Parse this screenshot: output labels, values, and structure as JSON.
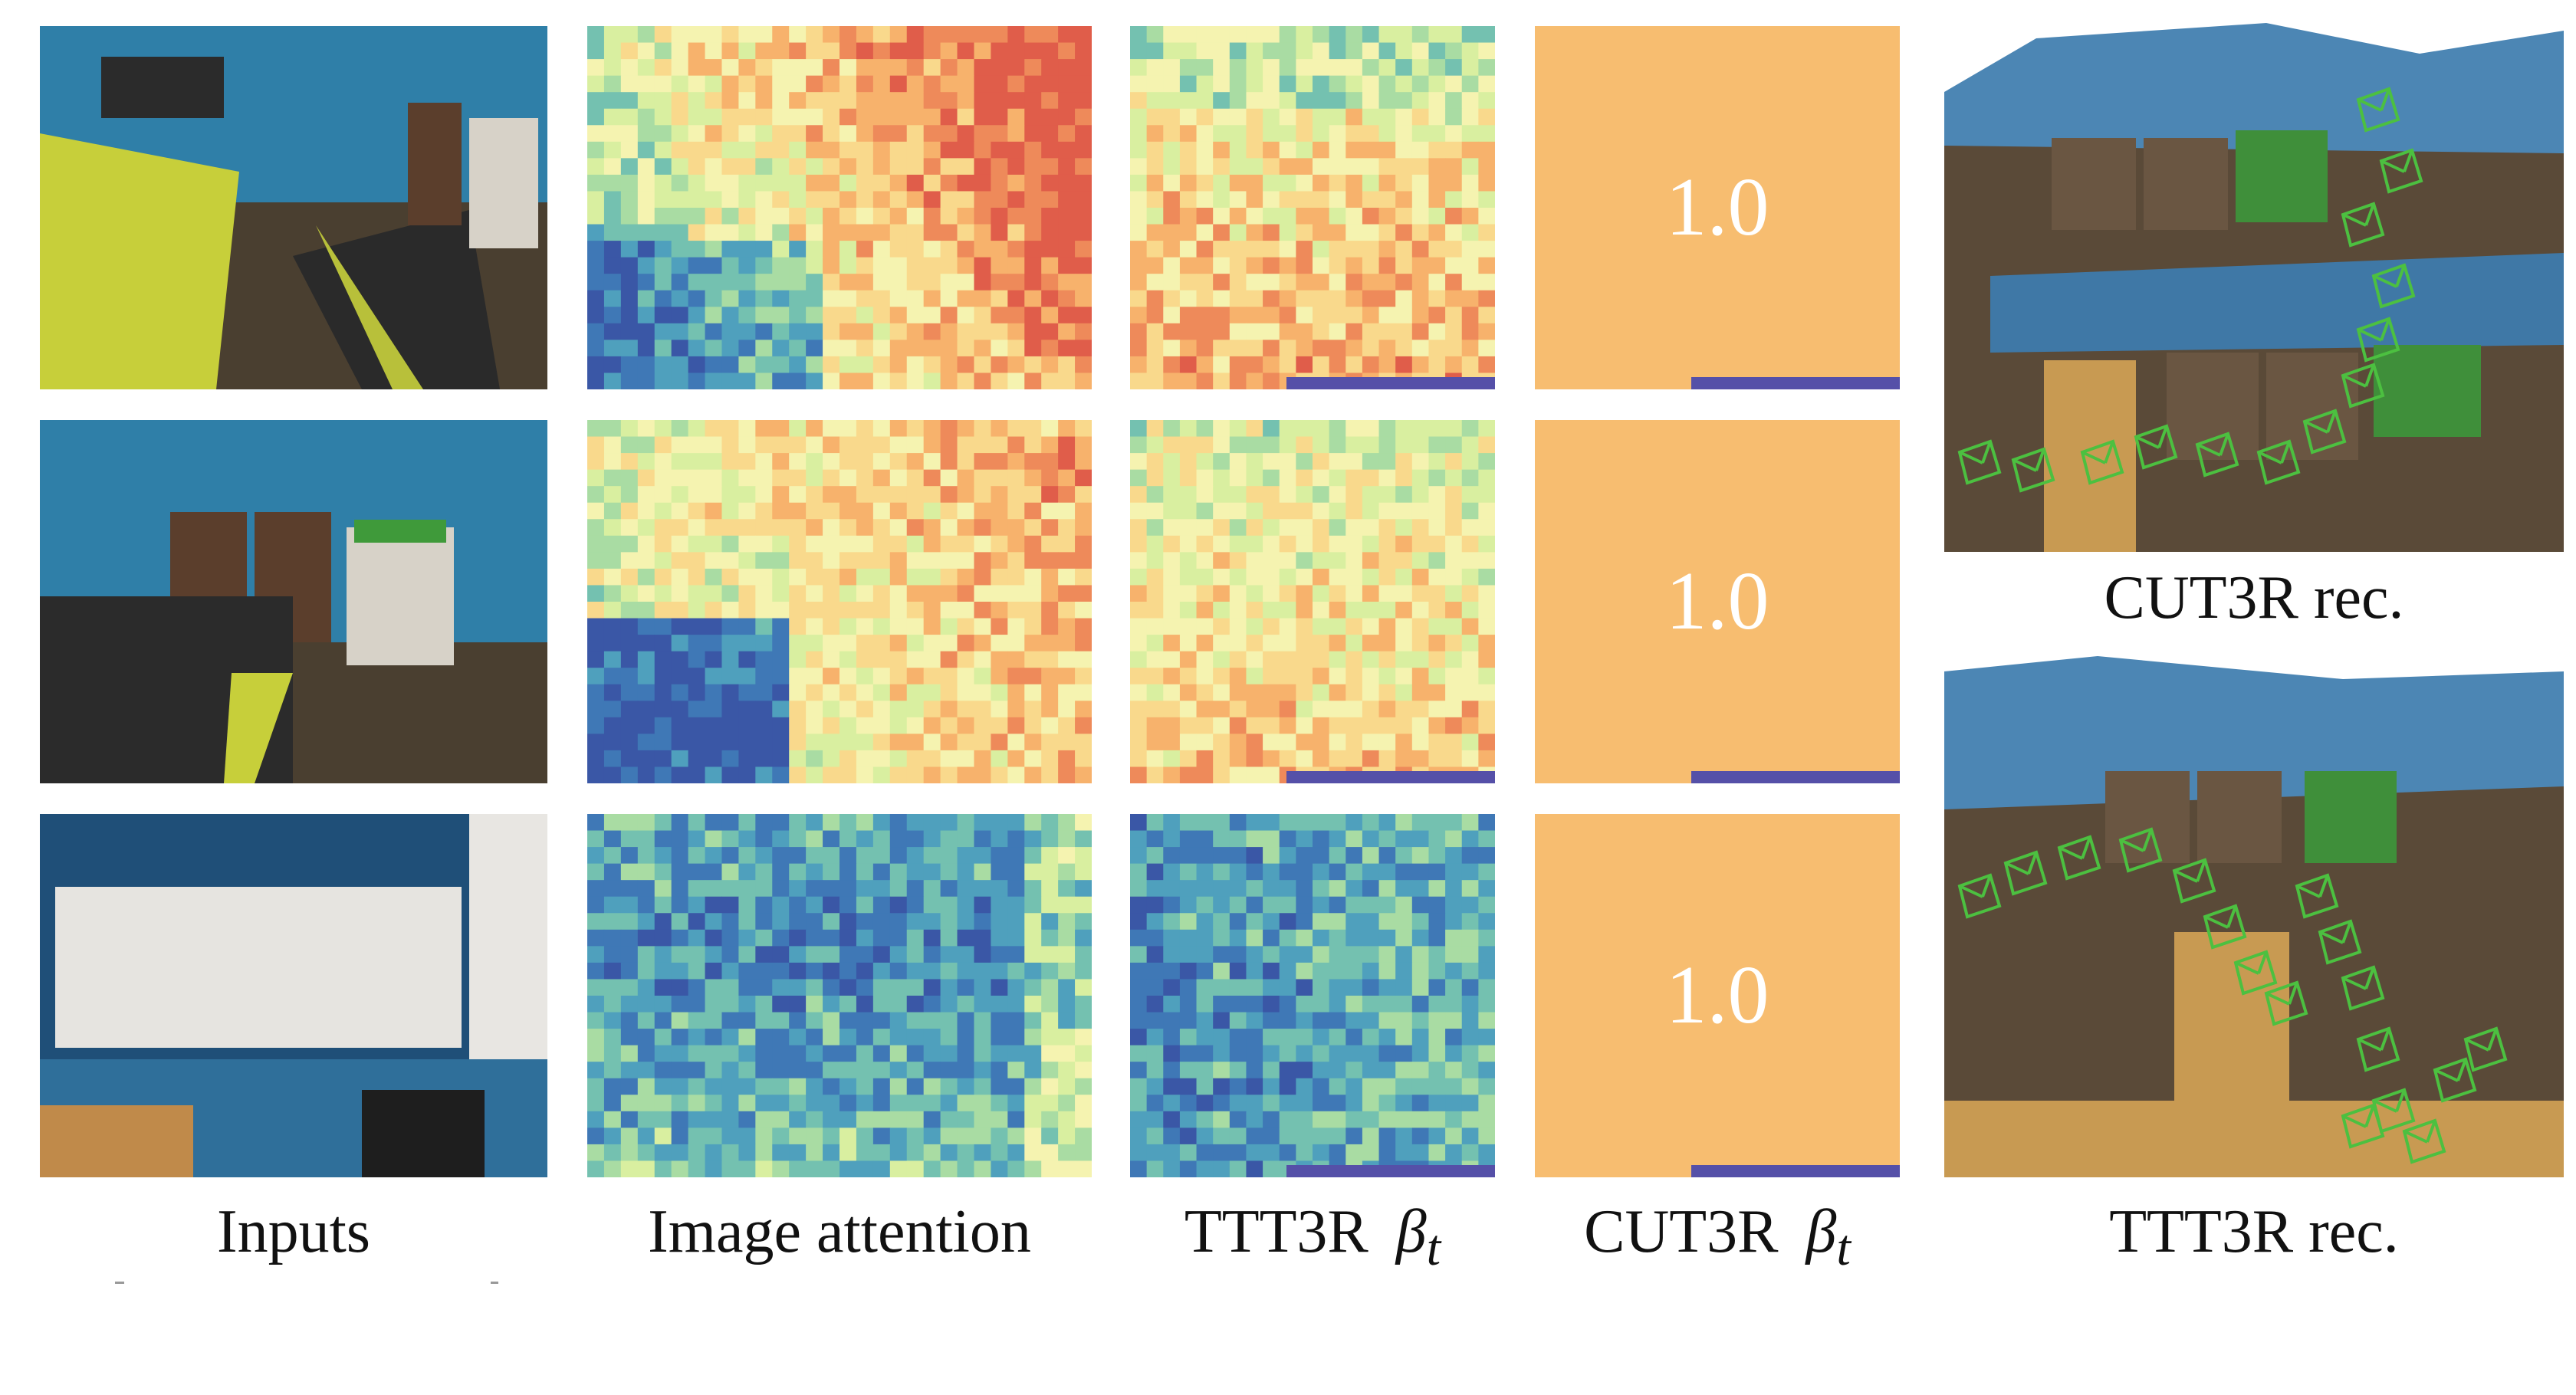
{
  "columns": {
    "inputs": "Inputs",
    "image_attention": "Image attention",
    "ttt3r": "TTT3R",
    "cut3r": "CUT3R",
    "beta_symbol": "β",
    "beta_sub": "t"
  },
  "cut3r_values": [
    "1.0",
    "1.0",
    "1.0"
  ],
  "reconstructions": {
    "cut3r_caption": "CUT3R rec.",
    "ttt3r_caption": "TTT3R rec."
  },
  "colors": {
    "cut3r_fill": "#f7bd70",
    "bar": "#5550a8",
    "camera_frustum": "#4cc040"
  },
  "heatmap_colormap": "Spectral_r (blue low → yellow → orange high)"
}
